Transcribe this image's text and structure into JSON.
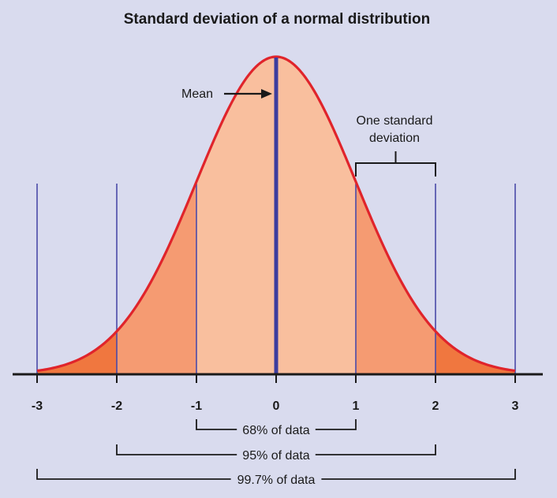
{
  "chart_data": {
    "type": "area",
    "title": "Standard deviation of a normal distribution",
    "xlabel": "",
    "ylabel": "",
    "xlim": [
      -3,
      3
    ],
    "ticks": [
      -3,
      -2,
      -1,
      0,
      1,
      2,
      3
    ],
    "tick_labels": [
      "-3",
      "-2",
      "-1",
      "0",
      "1",
      "2",
      "3"
    ],
    "curve": {
      "mean": 0,
      "sd": 1,
      "color": "#e0242b"
    },
    "bands": [
      {
        "from": -1,
        "to": 1,
        "color": "#f9bf9e"
      },
      {
        "from": -2,
        "to": 2,
        "color": "#f59b72"
      },
      {
        "from": -3,
        "to": 3,
        "color": "#f0773f"
      }
    ],
    "mean_line_color": "#3d3d9e",
    "sd_line_color": "#4a4aa8",
    "annotations": {
      "mean_label": "Mean",
      "sd_label_line1": "One standard",
      "sd_label_line2": "deviation",
      "sd_bracket": [
        1,
        2
      ]
    },
    "ranges": [
      {
        "from": -1,
        "to": 1,
        "label": "68% of data"
      },
      {
        "from": -2,
        "to": 2,
        "label": "95% of data"
      },
      {
        "from": -3,
        "to": 3,
        "label": "99.7% of data"
      }
    ],
    "colors": {
      "background": "#d9dbee",
      "axis": "#1a1a1a",
      "text": "#1a1a1a"
    },
    "grid": false,
    "legend": "none"
  }
}
